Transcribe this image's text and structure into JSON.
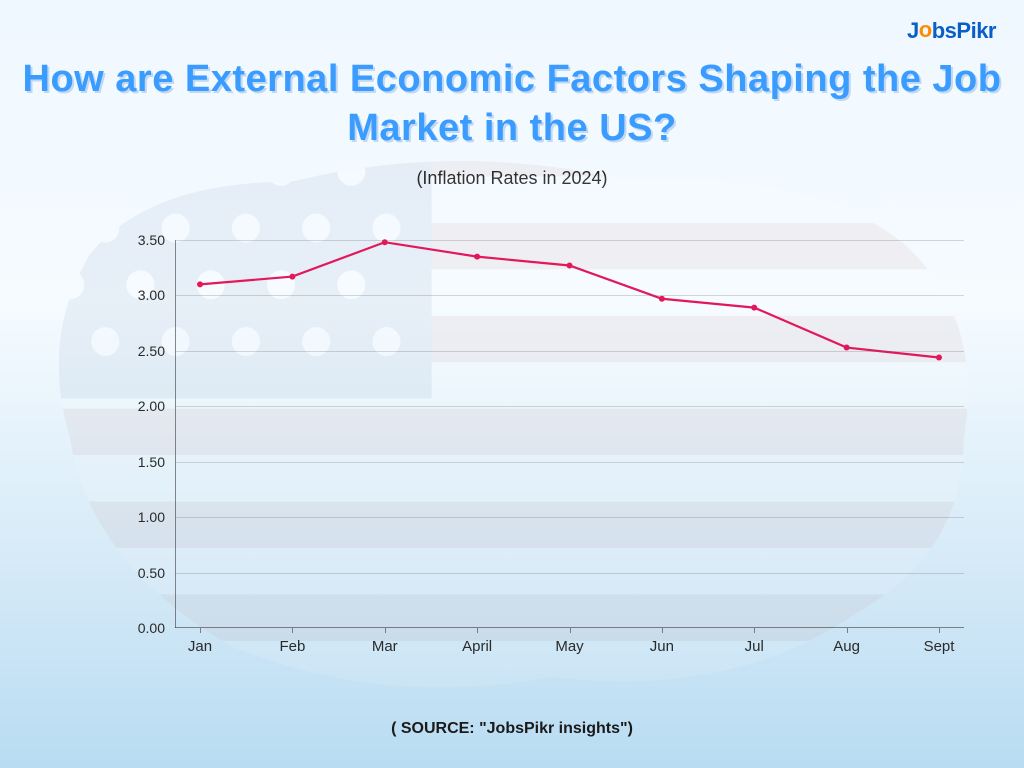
{
  "logo": {
    "text": "JobsPikr",
    "o_color": "#ff8c00",
    "text_color": "#0a5fc7"
  },
  "title": "How are External Economic Factors Shaping the Job Market in the US?",
  "subtitle": "(Inflation Rates in 2024)",
  "source": "( SOURCE: \"JobsPikr insights\")",
  "chart": {
    "type": "line",
    "categories": [
      "Jan",
      "Feb",
      "Mar",
      "April",
      "May",
      "Jun",
      "Jul",
      "Aug",
      "Sept"
    ],
    "values": [
      3.1,
      3.17,
      3.48,
      3.35,
      3.27,
      2.97,
      2.89,
      2.53,
      2.44
    ],
    "line_color": "#e3185a",
    "line_width": 2.2,
    "marker_radius": 3,
    "ylim": [
      0.0,
      3.5
    ],
    "ytick_step": 0.5,
    "ytick_labels": [
      "0.00",
      "0.50",
      "1.00",
      "1.50",
      "2.00",
      "2.50",
      "3.00",
      "3.50"
    ],
    "grid_color": "rgba(100,100,100,0.25)",
    "axis_color": "rgba(60,60,60,0.6)",
    "tick_fontsize": 15,
    "text_color": "#2a2a2a",
    "background_map_opacity": 0.12
  },
  "colors": {
    "title": "#3b9cff",
    "bg_top": "#f0f8ff",
    "bg_bottom": "#b8dcf2"
  }
}
